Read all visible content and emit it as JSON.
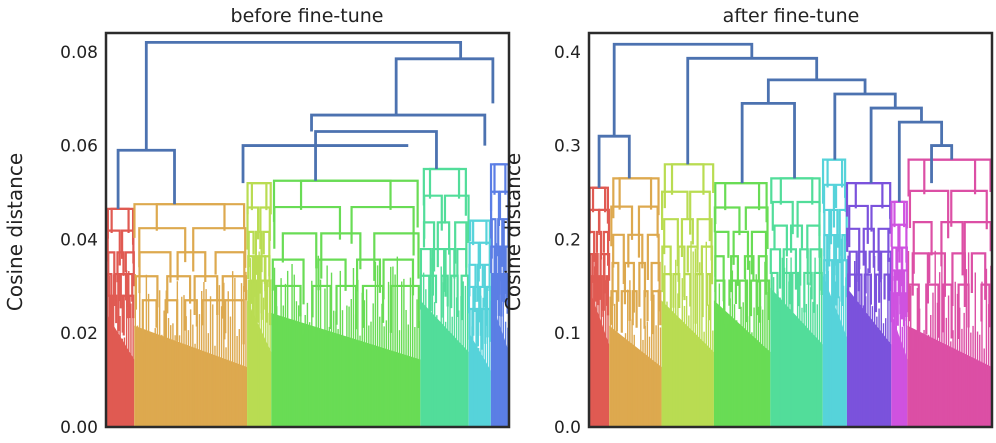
{
  "chart_data": [
    {
      "type": "dendrogram",
      "title": "before fine-tune",
      "ylabel": "Cosine distance",
      "ylim": [
        0,
        0.084
      ],
      "yticks": [
        0.0,
        0.02,
        0.04,
        0.06,
        0.08
      ],
      "ytick_labels": [
        "0.00",
        "0.02",
        "0.04",
        "0.06",
        "0.08"
      ],
      "above_threshold_color": "#4c72b0",
      "clusters": [
        {
          "color": "#e05a52",
          "from": 0.0,
          "to": 0.07,
          "top": 0.0465,
          "base": 0.018
        },
        {
          "color": "#dda94f",
          "from": 0.07,
          "to": 0.35,
          "top": 0.0475,
          "base": 0.016
        },
        {
          "color": "#b9dc52",
          "from": 0.35,
          "to": 0.41,
          "top": 0.052,
          "base": 0.02
        },
        {
          "color": "#69dc55",
          "from": 0.41,
          "to": 0.78,
          "top": 0.0525,
          "base": 0.018
        },
        {
          "color": "#52dd9a",
          "from": 0.78,
          "to": 0.9,
          "top": 0.055,
          "base": 0.02
        },
        {
          "color": "#56d3da",
          "from": 0.9,
          "to": 0.955,
          "top": 0.044,
          "base": 0.015
        },
        {
          "color": "#5b7ee5",
          "from": 0.955,
          "to": 1.0,
          "top": 0.056,
          "base": 0.02
        }
      ],
      "links": [
        {
          "x1": 0.03,
          "x2": 0.17,
          "h": 0.059,
          "y1": 0.0465,
          "y2": 0.0475
        },
        {
          "x1": 0.34,
          "x2": 0.75,
          "h": 0.06,
          "y1": 0.052,
          "y2": 0.06
        },
        {
          "x1": 0.52,
          "x2": 0.82,
          "h": 0.063,
          "y1": 0.0525,
          "y2": 0.055
        },
        {
          "x1": 0.51,
          "x2": 0.94,
          "h": 0.0665,
          "y1": 0.063,
          "y2": 0.06
        },
        {
          "x1": 0.72,
          "x2": 0.96,
          "h": 0.0785,
          "y1": 0.0665,
          "y2": 0.069
        },
        {
          "x1": 0.1,
          "x2": 0.88,
          "h": 0.082,
          "y1": 0.059,
          "y2": 0.0785
        }
      ]
    },
    {
      "type": "dendrogram",
      "title": "after fine-tune",
      "ylabel": "Cosine distance",
      "ylim": [
        0,
        0.42
      ],
      "yticks": [
        0.0,
        0.1,
        0.2,
        0.3,
        0.4
      ],
      "ytick_labels": [
        "0.0",
        "0.1",
        "0.2",
        "0.3",
        "0.4"
      ],
      "above_threshold_color": "#4c72b0",
      "clusters": [
        {
          "color": "#e05a52",
          "from": 0.0,
          "to": 0.05,
          "top": 0.255,
          "base": 0.11
        },
        {
          "color": "#dda94f",
          "from": 0.05,
          "to": 0.18,
          "top": 0.265,
          "base": 0.08
        },
        {
          "color": "#b9dc52",
          "from": 0.18,
          "to": 0.31,
          "top": 0.28,
          "base": 0.1
        },
        {
          "color": "#69dc55",
          "from": 0.31,
          "to": 0.45,
          "top": 0.26,
          "base": 0.1
        },
        {
          "color": "#52dd9a",
          "from": 0.45,
          "to": 0.58,
          "top": 0.265,
          "base": 0.11
        },
        {
          "color": "#56d3da",
          "from": 0.58,
          "to": 0.64,
          "top": 0.285,
          "base": 0.12
        },
        {
          "color": "#7b52dc",
          "from": 0.64,
          "to": 0.75,
          "top": 0.26,
          "base": 0.11
        },
        {
          "color": "#cf52e0",
          "from": 0.75,
          "to": 0.79,
          "top": 0.24,
          "base": 0.09
        },
        {
          "color": "#dc4fa5",
          "from": 0.79,
          "to": 1.0,
          "top": 0.285,
          "base": 0.08
        }
      ],
      "links": [
        {
          "x1": 0.025,
          "x2": 0.1,
          "h": 0.31,
          "y1": 0.255,
          "y2": 0.265
        },
        {
          "x1": 0.85,
          "x2": 0.9,
          "h": 0.3,
          "y1": 0.26,
          "y2": 0.285
        },
        {
          "x1": 0.77,
          "x2": 0.875,
          "h": 0.325,
          "y1": 0.24,
          "y2": 0.3
        },
        {
          "x1": 0.7,
          "x2": 0.825,
          "h": 0.34,
          "y1": 0.26,
          "y2": 0.325
        },
        {
          "x1": 0.38,
          "x2": 0.51,
          "h": 0.345,
          "y1": 0.26,
          "y2": 0.265
        },
        {
          "x1": 0.61,
          "x2": 0.76,
          "h": 0.355,
          "y1": 0.285,
          "y2": 0.34
        },
        {
          "x1": 0.445,
          "x2": 0.685,
          "h": 0.37,
          "y1": 0.345,
          "y2": 0.355
        },
        {
          "x1": 0.245,
          "x2": 0.565,
          "h": 0.393,
          "y1": 0.28,
          "y2": 0.37
        },
        {
          "x1": 0.0625,
          "x2": 0.404,
          "h": 0.408,
          "y1": 0.31,
          "y2": 0.393
        }
      ]
    }
  ]
}
